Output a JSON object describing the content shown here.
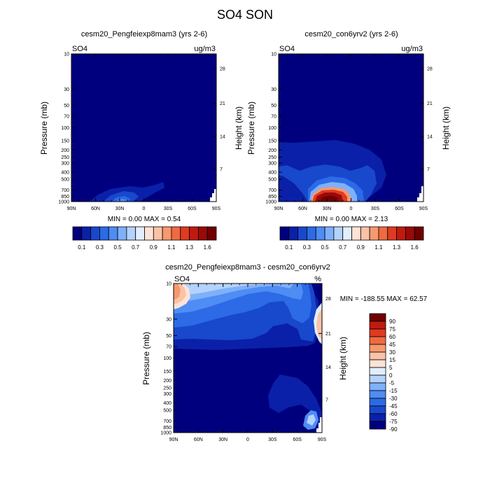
{
  "figure": {
    "title": "SO4 SON"
  },
  "colors": {
    "sequential": [
      "#00007f",
      "#0a20a8",
      "#1848cc",
      "#2c6ae6",
      "#4f8cf4",
      "#7fb0fa",
      "#b4d2fc",
      "#e2eefe",
      "#fde3d6",
      "#fbc2a6",
      "#f6996f",
      "#ef6a42",
      "#e03a22",
      "#c01a10",
      "#9a0a08",
      "#700000"
    ],
    "diverging": [
      "#00007f",
      "#0a20a8",
      "#1848cc",
      "#2c6ae6",
      "#4f8cf4",
      "#7fb0fa",
      "#b4d2fc",
      "#e2eefe",
      "#fde3d6",
      "#fbc2a6",
      "#f6996f",
      "#ef6a42",
      "#e03a22",
      "#c01a10",
      "#700000"
    ],
    "background": "#00007f"
  },
  "chart_data": [
    {
      "type": "contour",
      "title": "cesm20_Pengfeiexp8mam3 (yrs 2-6)",
      "variable_label": "SO4",
      "units_label": "ug/m3",
      "ylabel": "Pressure (mb)",
      "ylabel_right": "Height (km)",
      "x_ticks": [
        "90N",
        "60N",
        "30N",
        "0",
        "30S",
        "60S",
        "90S"
      ],
      "y_ticks": [
        "10",
        "30",
        "50",
        "70",
        "100",
        "150",
        "200",
        "250",
        "300",
        "400",
        "500",
        "700",
        "850",
        "1000"
      ],
      "y_ticks_right": [
        "28",
        "21",
        "14",
        "7"
      ],
      "stats_text": "MIN =   0.00   MAX =   0.54",
      "min": 0.0,
      "max": 0.54,
      "colorbar_labels": [
        "0.1",
        "0.3",
        "0.5",
        "0.7",
        "0.9",
        "1.1",
        "1.3",
        "1.6"
      ]
    },
    {
      "type": "contour",
      "title": "cesm20_con6yrv2 (yrs 2-6)",
      "variable_label": "SO4",
      "units_label": "ug/m3",
      "ylabel": "Pressure (mb)",
      "ylabel_right": "Height (km)",
      "x_ticks": [
        "90N",
        "60N",
        "30N",
        "0",
        "30S",
        "60S",
        "90S"
      ],
      "y_ticks": [
        "10",
        "30",
        "50",
        "70",
        "100",
        "150",
        "200",
        "250",
        "300",
        "400",
        "500",
        "700",
        "850",
        "1000"
      ],
      "y_ticks_right": [
        "28",
        "21",
        "14",
        "7"
      ],
      "stats_text": "MIN =   0.00   MAX =   2.13",
      "min": 0.0,
      "max": 2.13,
      "colorbar_labels": [
        "0.1",
        "0.3",
        "0.5",
        "0.7",
        "0.9",
        "1.1",
        "1.3",
        "1.6"
      ]
    },
    {
      "type": "contour",
      "title": "cesm20_Pengfeiexp8mam3 - cesm20_con6yrv2",
      "variable_label": "SO4",
      "units_label": "%",
      "ylabel": "Pressure (mb)",
      "ylabel_right": "Height (km)",
      "x_ticks": [
        "90N",
        "60N",
        "30N",
        "0",
        "30S",
        "60S",
        "90S"
      ],
      "y_ticks": [
        "10",
        "30",
        "50",
        "70",
        "100",
        "150",
        "200",
        "250",
        "300",
        "400",
        "500",
        "700",
        "850",
        "1000"
      ],
      "y_ticks_right": [
        "28",
        "21",
        "14",
        "7"
      ],
      "stats_text": "MIN = -188.55  MAX =  62.57",
      "min": -188.55,
      "max": 62.57,
      "colorbar_labels": [
        "90",
        "75",
        "60",
        "45",
        "30",
        "15",
        "5",
        "0",
        "-5",
        "-15",
        "-30",
        "-45",
        "-60",
        "-75",
        "-90"
      ]
    }
  ]
}
